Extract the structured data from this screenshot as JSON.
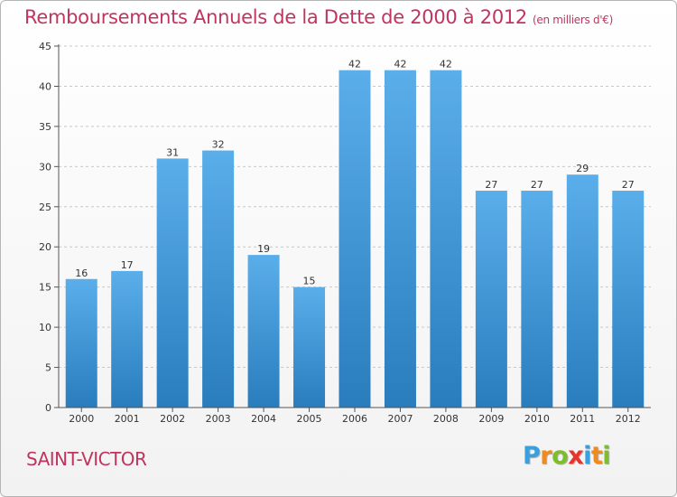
{
  "title": "Remboursements Annuels de la Dette de 2000 à 2012",
  "subtitle": "(en milliers d'€)",
  "town": "SAINT-VICTOR",
  "logo": {
    "letters": [
      "P",
      "r",
      "o",
      "x",
      "i",
      "t",
      "i"
    ],
    "colors": [
      "#3aa0dd",
      "#f08a1c",
      "#7cbf2a",
      "#e8332a",
      "#3aa0dd",
      "#f08a1c",
      "#7cbf2a"
    ]
  },
  "colors": {
    "bar_light": "#5aaeea",
    "bar_dark": "#2a7dbd",
    "accent": "#c0345f"
  },
  "chart_data": {
    "type": "bar",
    "categories": [
      "2000",
      "2001",
      "2002",
      "2003",
      "2004",
      "2005",
      "2006",
      "2007",
      "2008",
      "2009",
      "2010",
      "2011",
      "2012"
    ],
    "values": [
      16,
      17,
      31,
      32,
      19,
      15,
      42,
      42,
      42,
      27,
      27,
      29,
      27
    ],
    "title": "Remboursements Annuels de la Dette de 2000 à 2012",
    "ylim": [
      0,
      45
    ],
    "yticks": [
      0,
      5,
      10,
      15,
      20,
      25,
      30,
      35,
      40,
      45
    ],
    "grid": true,
    "data_labels": true
  }
}
